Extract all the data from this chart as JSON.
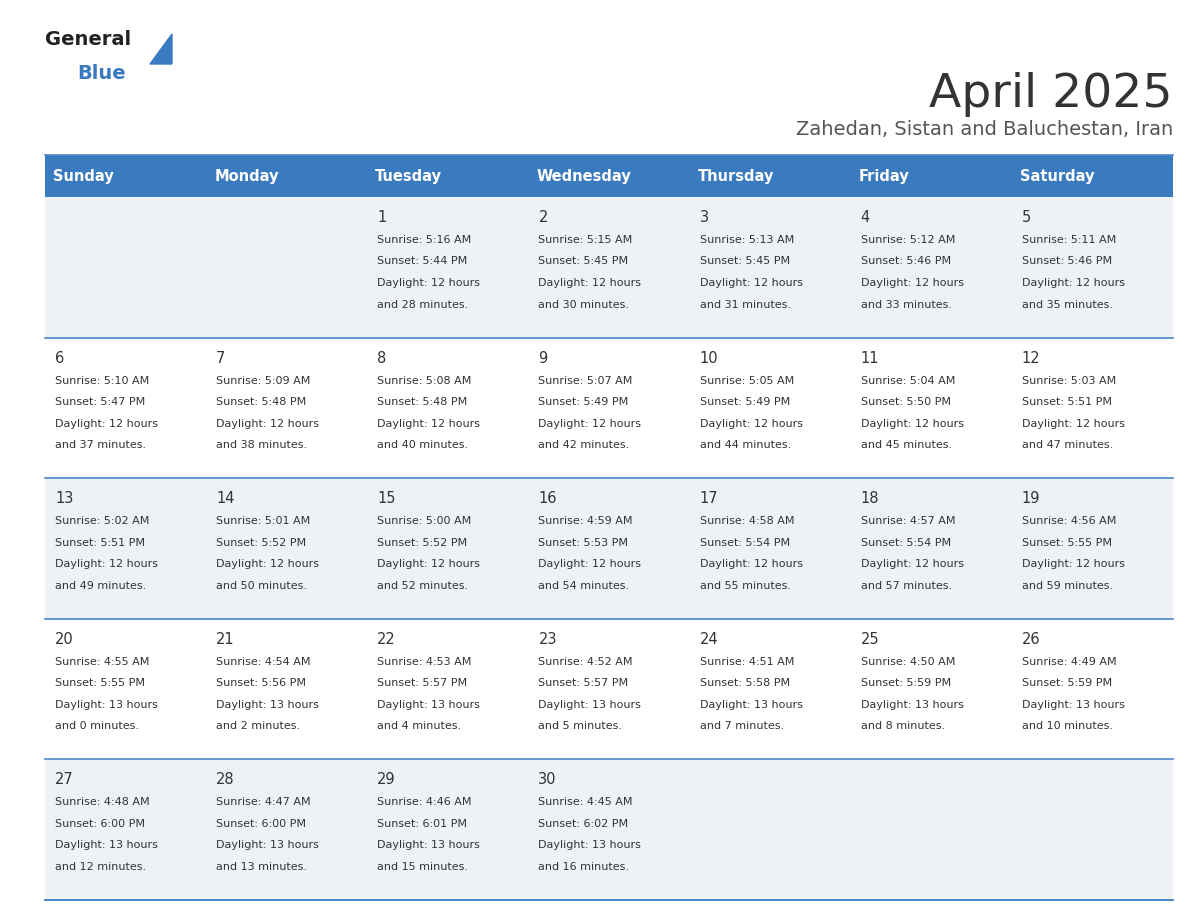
{
  "title": "April 2025",
  "subtitle": "Zahedan, Sistan and Baluchestan, Iran",
  "days_of_week": [
    "Sunday",
    "Monday",
    "Tuesday",
    "Wednesday",
    "Thursday",
    "Friday",
    "Saturday"
  ],
  "header_bg": "#3a7abf",
  "header_text": "#ffffff",
  "row_bg_odd": "#eef2f7",
  "row_bg_even": "#ffffff",
  "border_color": "#4a86c8",
  "text_color": "#333333",
  "title_color": "#333333",
  "subtitle_color": "#555555",
  "logo_general_color": "#222222",
  "logo_blue_color": "#3a7abf",
  "logo_triangle_color": "#3a7abf",
  "calendar": [
    [
      {
        "day": "",
        "sunrise": "",
        "sunset": "",
        "daylight_h": "",
        "daylight_m": ""
      },
      {
        "day": "",
        "sunrise": "",
        "sunset": "",
        "daylight_h": "",
        "daylight_m": ""
      },
      {
        "day": "1",
        "sunrise": "5:16 AM",
        "sunset": "5:44 PM",
        "daylight_h": "12 hours",
        "daylight_m": "and 28 minutes."
      },
      {
        "day": "2",
        "sunrise": "5:15 AM",
        "sunset": "5:45 PM",
        "daylight_h": "12 hours",
        "daylight_m": "and 30 minutes."
      },
      {
        "day": "3",
        "sunrise": "5:13 AM",
        "sunset": "5:45 PM",
        "daylight_h": "12 hours",
        "daylight_m": "and 31 minutes."
      },
      {
        "day": "4",
        "sunrise": "5:12 AM",
        "sunset": "5:46 PM",
        "daylight_h": "12 hours",
        "daylight_m": "and 33 minutes."
      },
      {
        "day": "5",
        "sunrise": "5:11 AM",
        "sunset": "5:46 PM",
        "daylight_h": "12 hours",
        "daylight_m": "and 35 minutes."
      }
    ],
    [
      {
        "day": "6",
        "sunrise": "5:10 AM",
        "sunset": "5:47 PM",
        "daylight_h": "12 hours",
        "daylight_m": "and 37 minutes."
      },
      {
        "day": "7",
        "sunrise": "5:09 AM",
        "sunset": "5:48 PM",
        "daylight_h": "12 hours",
        "daylight_m": "and 38 minutes."
      },
      {
        "day": "8",
        "sunrise": "5:08 AM",
        "sunset": "5:48 PM",
        "daylight_h": "12 hours",
        "daylight_m": "and 40 minutes."
      },
      {
        "day": "9",
        "sunrise": "5:07 AM",
        "sunset": "5:49 PM",
        "daylight_h": "12 hours",
        "daylight_m": "and 42 minutes."
      },
      {
        "day": "10",
        "sunrise": "5:05 AM",
        "sunset": "5:49 PM",
        "daylight_h": "12 hours",
        "daylight_m": "and 44 minutes."
      },
      {
        "day": "11",
        "sunrise": "5:04 AM",
        "sunset": "5:50 PM",
        "daylight_h": "12 hours",
        "daylight_m": "and 45 minutes."
      },
      {
        "day": "12",
        "sunrise": "5:03 AM",
        "sunset": "5:51 PM",
        "daylight_h": "12 hours",
        "daylight_m": "and 47 minutes."
      }
    ],
    [
      {
        "day": "13",
        "sunrise": "5:02 AM",
        "sunset": "5:51 PM",
        "daylight_h": "12 hours",
        "daylight_m": "and 49 minutes."
      },
      {
        "day": "14",
        "sunrise": "5:01 AM",
        "sunset": "5:52 PM",
        "daylight_h": "12 hours",
        "daylight_m": "and 50 minutes."
      },
      {
        "day": "15",
        "sunrise": "5:00 AM",
        "sunset": "5:52 PM",
        "daylight_h": "12 hours",
        "daylight_m": "and 52 minutes."
      },
      {
        "day": "16",
        "sunrise": "4:59 AM",
        "sunset": "5:53 PM",
        "daylight_h": "12 hours",
        "daylight_m": "and 54 minutes."
      },
      {
        "day": "17",
        "sunrise": "4:58 AM",
        "sunset": "5:54 PM",
        "daylight_h": "12 hours",
        "daylight_m": "and 55 minutes."
      },
      {
        "day": "18",
        "sunrise": "4:57 AM",
        "sunset": "5:54 PM",
        "daylight_h": "12 hours",
        "daylight_m": "and 57 minutes."
      },
      {
        "day": "19",
        "sunrise": "4:56 AM",
        "sunset": "5:55 PM",
        "daylight_h": "12 hours",
        "daylight_m": "and 59 minutes."
      }
    ],
    [
      {
        "day": "20",
        "sunrise": "4:55 AM",
        "sunset": "5:55 PM",
        "daylight_h": "13 hours",
        "daylight_m": "and 0 minutes."
      },
      {
        "day": "21",
        "sunrise": "4:54 AM",
        "sunset": "5:56 PM",
        "daylight_h": "13 hours",
        "daylight_m": "and 2 minutes."
      },
      {
        "day": "22",
        "sunrise": "4:53 AM",
        "sunset": "5:57 PM",
        "daylight_h": "13 hours",
        "daylight_m": "and 4 minutes."
      },
      {
        "day": "23",
        "sunrise": "4:52 AM",
        "sunset": "5:57 PM",
        "daylight_h": "13 hours",
        "daylight_m": "and 5 minutes."
      },
      {
        "day": "24",
        "sunrise": "4:51 AM",
        "sunset": "5:58 PM",
        "daylight_h": "13 hours",
        "daylight_m": "and 7 minutes."
      },
      {
        "day": "25",
        "sunrise": "4:50 AM",
        "sunset": "5:59 PM",
        "daylight_h": "13 hours",
        "daylight_m": "and 8 minutes."
      },
      {
        "day": "26",
        "sunrise": "4:49 AM",
        "sunset": "5:59 PM",
        "daylight_h": "13 hours",
        "daylight_m": "and 10 minutes."
      }
    ],
    [
      {
        "day": "27",
        "sunrise": "4:48 AM",
        "sunset": "6:00 PM",
        "daylight_h": "13 hours",
        "daylight_m": "and 12 minutes."
      },
      {
        "day": "28",
        "sunrise": "4:47 AM",
        "sunset": "6:00 PM",
        "daylight_h": "13 hours",
        "daylight_m": "and 13 minutes."
      },
      {
        "day": "29",
        "sunrise": "4:46 AM",
        "sunset": "6:01 PM",
        "daylight_h": "13 hours",
        "daylight_m": "and 15 minutes."
      },
      {
        "day": "30",
        "sunrise": "4:45 AM",
        "sunset": "6:02 PM",
        "daylight_h": "13 hours",
        "daylight_m": "and 16 minutes."
      },
      {
        "day": "",
        "sunrise": "",
        "sunset": "",
        "daylight_h": "",
        "daylight_m": ""
      },
      {
        "day": "",
        "sunrise": "",
        "sunset": "",
        "daylight_h": "",
        "daylight_m": ""
      },
      {
        "day": "",
        "sunrise": "",
        "sunset": "",
        "daylight_h": "",
        "daylight_m": ""
      }
    ]
  ]
}
